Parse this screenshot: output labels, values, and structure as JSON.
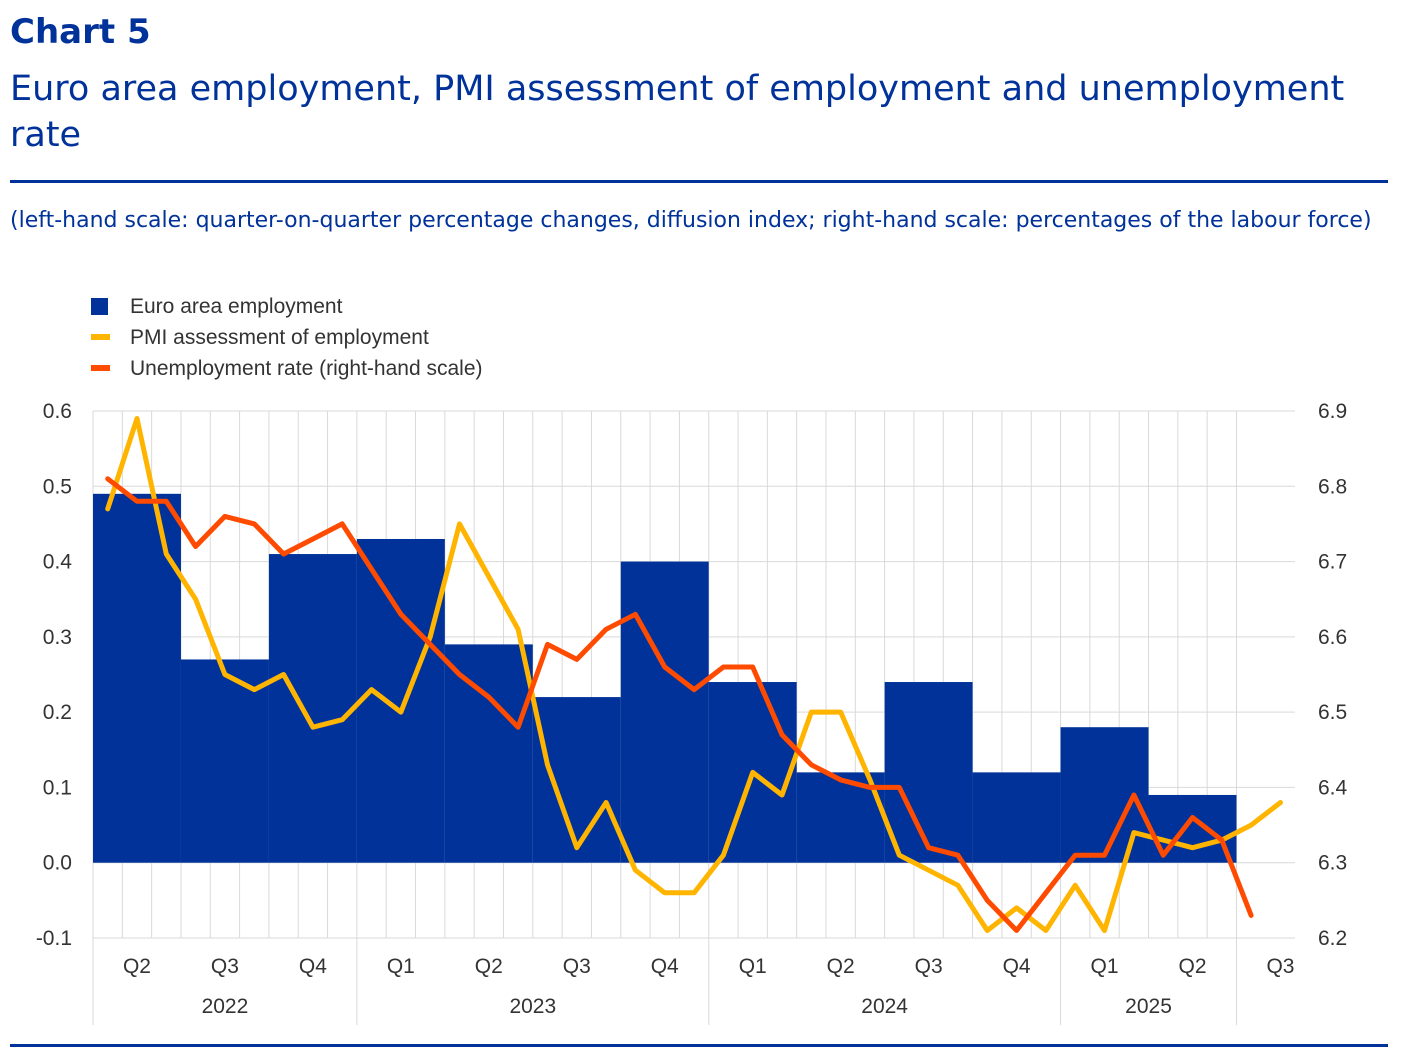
{
  "header": {
    "chart_number": "Chart 5",
    "title": "Euro area employment, PMI assessment of employment and unemployment rate",
    "subtitle": "(left-hand scale: quarter-on-quarter percentage changes, diffusion index; right-hand scale: percentages of the labour force)"
  },
  "colors": {
    "employment": "#003299",
    "pmi": "#FFB400",
    "unemployment": "#FF4B00",
    "grid": "#d9d9d9",
    "axis_text": "#333333"
  },
  "chart_data": {
    "type": "bar+line",
    "legend": [
      "Euro area employment",
      "PMI assessment of employment",
      "Unemployment rate (right-hand scale)"
    ],
    "legend_position": "top-left",
    "grid": true,
    "y_left": {
      "min": -0.1,
      "max": 0.6,
      "ticks": [
        "0.6",
        "0.5",
        "0.4",
        "0.3",
        "0.2",
        "0.1",
        "0.0",
        "-0.1"
      ]
    },
    "y_right": {
      "min": 6.2,
      "max": 6.9,
      "ticks": [
        "6.9",
        "6.8",
        "6.7",
        "6.6",
        "6.5",
        "6.4",
        "6.3",
        "6.2"
      ]
    },
    "quarter_labels": [
      "Q2",
      "Q3",
      "Q4",
      "Q1",
      "Q2",
      "Q3",
      "Q4",
      "Q1",
      "Q2",
      "Q3",
      "Q4",
      "Q1",
      "Q2",
      "Q3"
    ],
    "year_labels": [
      "2022",
      "2023",
      "2024",
      "2025"
    ],
    "months_per_year": [
      9,
      12,
      12,
      6
    ],
    "start_month": "2022-04",
    "bars": {
      "name": "Euro area employment",
      "periods": [
        "2022 Q2",
        "2022 Q3",
        "2022 Q4",
        "2023 Q1",
        "2023 Q2",
        "2023 Q3",
        "2023 Q4",
        "2024 Q1",
        "2024 Q2",
        "2024 Q3",
        "2024 Q4",
        "2025 Q1",
        "2025 Q2"
      ],
      "values": [
        0.49,
        0.27,
        0.41,
        0.43,
        0.29,
        0.22,
        0.4,
        0.24,
        0.12,
        0.24,
        0.12,
        0.18,
        0.09
      ]
    },
    "series": [
      {
        "name": "PMI assessment of employment",
        "axis": "left",
        "values": [
          0.47,
          0.59,
          0.41,
          0.35,
          0.25,
          0.23,
          0.25,
          0.18,
          0.19,
          0.23,
          0.2,
          0.3,
          0.45,
          0.38,
          0.31,
          0.13,
          0.02,
          0.08,
          -0.01,
          -0.04,
          -0.04,
          0.01,
          0.12,
          0.09,
          0.2,
          0.2,
          0.11,
          0.01,
          -0.01,
          -0.03,
          -0.09,
          -0.06,
          -0.09,
          -0.03,
          -0.09,
          0.04,
          0.03,
          0.02,
          0.03,
          0.05,
          0.08
        ]
      },
      {
        "name": "Unemployment rate (right-hand scale)",
        "axis": "right",
        "values": [
          6.81,
          6.78,
          6.78,
          6.72,
          6.76,
          6.75,
          6.71,
          6.73,
          6.75,
          6.69,
          6.63,
          6.59,
          6.55,
          6.52,
          6.48,
          6.59,
          6.57,
          6.61,
          6.63,
          6.56,
          6.53,
          6.56,
          6.56,
          6.47,
          6.43,
          6.41,
          6.4,
          6.4,
          6.32,
          6.31,
          6.25,
          6.21,
          6.26,
          6.31,
          6.31,
          6.39,
          6.31,
          6.36,
          6.33,
          6.23
        ]
      }
    ]
  }
}
